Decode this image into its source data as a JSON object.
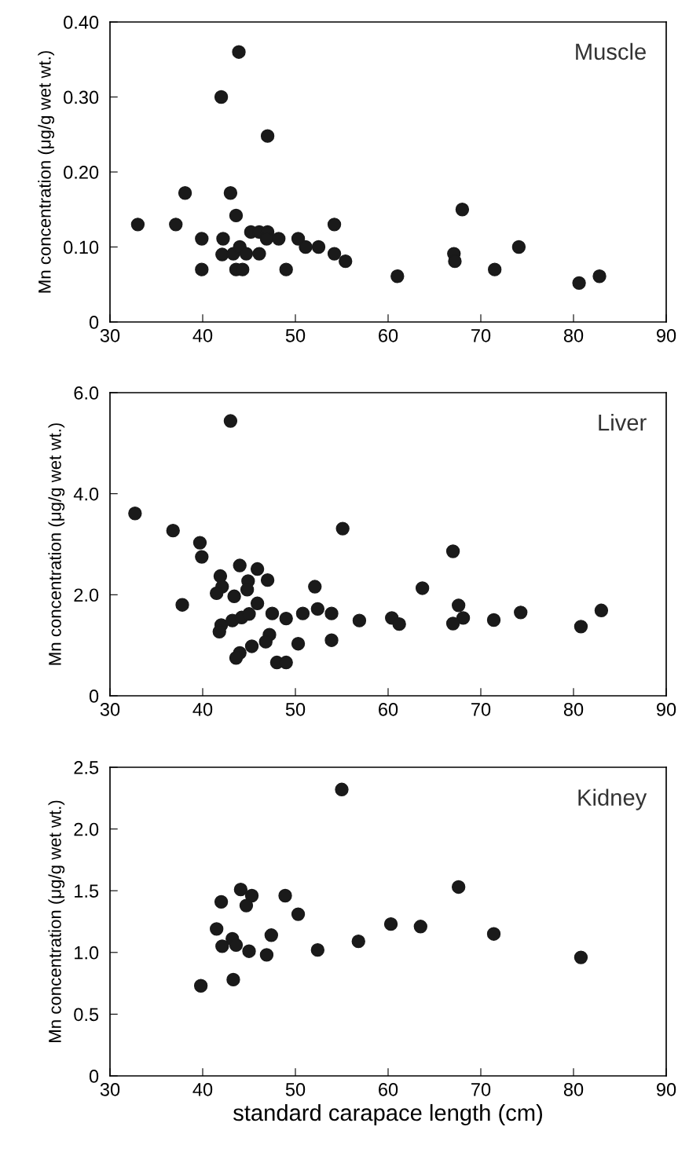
{
  "chart_data": [
    {
      "type": "scatter",
      "title": "Muscle",
      "ylabel": "Mn concentration (μg/g wet wt.)",
      "marker": "circle",
      "grid": false,
      "xlim": [
        30,
        90
      ],
      "xticks": [
        30,
        40,
        50,
        60,
        70,
        80,
        90
      ],
      "ylim": [
        0,
        0.4
      ],
      "yticks": [
        0,
        {
          "value": 0.1,
          "label": "0.10"
        },
        {
          "value": 0.2,
          "label": "0.20"
        },
        {
          "value": 0.3,
          "label": "0.30"
        },
        {
          "value": 0.4,
          "label": "0.40"
        }
      ],
      "series": [
        {
          "color": "#1a1a1a",
          "x": [
            33.0,
            37.1,
            38.1,
            39.9,
            39.9,
            42.0,
            42.2,
            42.1,
            43.0,
            43.6,
            43.9,
            43.3,
            44.0,
            43.6,
            44.3,
            44.7,
            46.1,
            45.2,
            46.1,
            47.0,
            47.0,
            46.9,
            48.2,
            49.0,
            50.3,
            51.1,
            52.5,
            54.2,
            54.2,
            55.4,
            61.0,
            68.0,
            67.1,
            67.2,
            71.5,
            74.1,
            80.6,
            82.8
          ],
          "values": [
            0.13,
            0.13,
            0.172,
            0.111,
            0.07,
            0.3,
            0.111,
            0.09,
            0.172,
            0.142,
            0.36,
            0.091,
            0.1,
            0.07,
            0.07,
            0.091,
            0.091,
            0.12,
            0.12,
            0.12,
            0.248,
            0.111,
            0.111,
            0.07,
            0.111,
            0.1,
            0.1,
            0.13,
            0.091,
            0.081,
            0.061,
            0.15,
            0.091,
            0.081,
            0.07,
            0.1,
            0.052,
            0.061
          ]
        }
      ]
    },
    {
      "type": "scatter",
      "title": "Liver",
      "ylabel": "Mn concentration (μg/g wet wt.)",
      "marker": "circle",
      "grid": false,
      "xlim": [
        30,
        90
      ],
      "xticks": [
        30,
        40,
        50,
        60,
        70,
        80,
        90
      ],
      "ylim": [
        0,
        6.0
      ],
      "yticks": [
        0,
        {
          "value": 2.0,
          "label": "2.0"
        },
        {
          "value": 4.0,
          "label": "4.0"
        },
        {
          "value": 6.0,
          "label": "6.0"
        }
      ],
      "series": [
        {
          "color": "#1a1a1a",
          "x": [
            32.7,
            36.8,
            39.7,
            39.9,
            37.8,
            41.9,
            42.1,
            41.5,
            43.0,
            44.0,
            45.9,
            44.9,
            44.8,
            47.0,
            43.4,
            45.9,
            42.0,
            41.8,
            43.2,
            44.2,
            45.0,
            47.5,
            49.0,
            47.2,
            46.8,
            45.3,
            44.0,
            43.6,
            48.0,
            49.0,
            50.3,
            50.8,
            52.1,
            52.4,
            53.9,
            53.9,
            55.1,
            56.9,
            60.4,
            61.2,
            63.7,
            67.0,
            67.6,
            68.1,
            67.0,
            71.4,
            74.3,
            80.8,
            83.0
          ],
          "values": [
            3.61,
            3.27,
            3.03,
            2.75,
            1.8,
            2.37,
            2.16,
            2.03,
            5.44,
            2.58,
            2.51,
            2.27,
            2.1,
            2.29,
            1.97,
            1.83,
            1.4,
            1.27,
            1.49,
            1.55,
            1.62,
            1.63,
            1.53,
            1.21,
            1.07,
            0.98,
            0.85,
            0.75,
            0.66,
            0.66,
            1.03,
            1.63,
            2.16,
            1.72,
            1.63,
            1.1,
            3.31,
            1.49,
            1.54,
            1.42,
            2.13,
            2.86,
            1.79,
            1.54,
            1.43,
            1.5,
            1.65,
            1.37,
            1.69
          ]
        }
      ]
    },
    {
      "type": "scatter",
      "title": "Kidney",
      "ylabel": "Mn concentration (μg/g wet wt.)",
      "xlabel": "standard carapace length (cm)",
      "marker": "circle",
      "grid": false,
      "xlim": [
        30,
        90
      ],
      "xticks": [
        30,
        40,
        50,
        60,
        70,
        80,
        90
      ],
      "ylim": [
        0,
        2.5
      ],
      "yticks": [
        0,
        {
          "value": 0.5,
          "label": "0.5"
        },
        {
          "value": 1.0,
          "label": "1.0"
        },
        {
          "value": 1.5,
          "label": "1.5"
        },
        {
          "value": 2.0,
          "label": "2.0"
        },
        {
          "value": 2.5,
          "label": "2.5"
        }
      ],
      "series": [
        {
          "color": "#1a1a1a",
          "x": [
            55.0,
            44.1,
            45.3,
            44.7,
            42.0,
            48.9,
            50.3,
            41.5,
            43.2,
            43.6,
            42.1,
            45.0,
            47.4,
            46.9,
            52.4,
            43.3,
            39.8,
            56.8,
            60.3,
            63.5,
            67.6,
            71.4,
            80.8
          ],
          "values": [
            2.32,
            1.51,
            1.46,
            1.38,
            1.41,
            1.46,
            1.31,
            1.19,
            1.11,
            1.06,
            1.05,
            1.01,
            1.14,
            0.98,
            1.02,
            0.78,
            0.73,
            1.09,
            1.23,
            1.21,
            1.53,
            1.15,
            0.96
          ]
        }
      ]
    }
  ]
}
